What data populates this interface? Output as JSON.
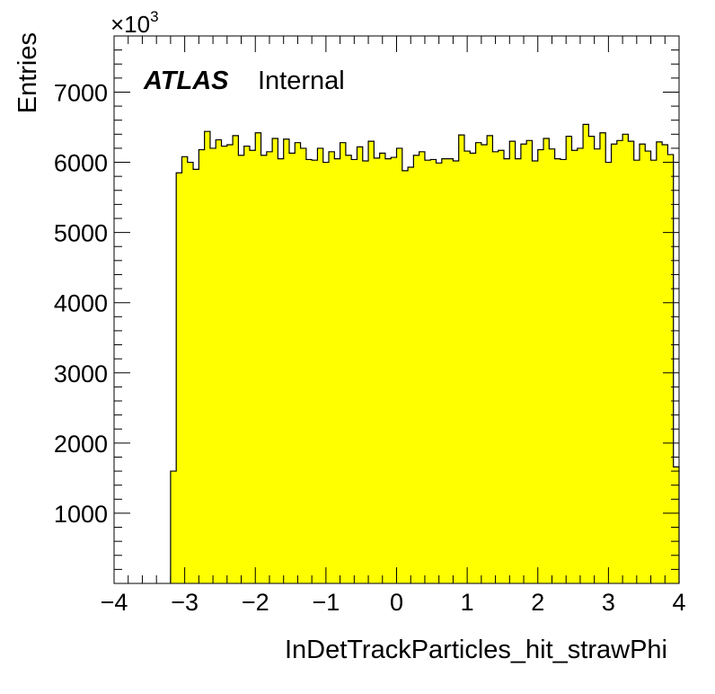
{
  "chart_data": {
    "type": "histogram",
    "title": "",
    "xlabel": "InDetTrackParticles_hit_strawPhi",
    "ylabel": "Entries",
    "y_multiplier_label": "×10",
    "y_multiplier_exponent": "3",
    "xlim": [
      -4,
      4
    ],
    "ylim": [
      0,
      7800
    ],
    "x_ticks": [
      "−4",
      "−3",
      "−2",
      "−1",
      "0",
      "1",
      "2",
      "3",
      "4"
    ],
    "x_tick_values": [
      -4,
      -3,
      -2,
      -1,
      0,
      1,
      2,
      3,
      4
    ],
    "y_ticks": [
      "1000",
      "2000",
      "3000",
      "4000",
      "5000",
      "6000",
      "7000"
    ],
    "y_tick_values": [
      1000,
      2000,
      3000,
      4000,
      5000,
      6000,
      7000
    ],
    "fill_color": "#ffff00",
    "line_color": "#000000",
    "bin_edges_start": -3.2,
    "bin_width": 0.08,
    "values": [
      1600,
      5850,
      6080,
      6000,
      5900,
      6180,
      6440,
      6200,
      6320,
      6230,
      6250,
      6380,
      6100,
      6230,
      6170,
      6420,
      6100,
      6150,
      6340,
      6050,
      6330,
      6130,
      6280,
      6200,
      6040,
      6030,
      6200,
      6000,
      6150,
      6050,
      6280,
      6100,
      6040,
      6220,
      6020,
      6300,
      6060,
      6130,
      6050,
      6070,
      6200,
      5880,
      5930,
      6100,
      6150,
      6030,
      6040,
      5990,
      6050,
      6050,
      6020,
      6390,
      6160,
      6130,
      6280,
      6250,
      6380,
      6150,
      6170,
      6050,
      6300,
      6050,
      6260,
      6310,
      6020,
      6180,
      6340,
      6190,
      6050,
      6040,
      6370,
      6170,
      6200,
      6540,
      6370,
      6190,
      6420,
      6000,
      6260,
      6310,
      6400,
      6300,
      6030,
      6260,
      6160,
      6030,
      6290,
      6250,
      6110,
      1660
    ]
  },
  "labels": {
    "experiment": "ATLAS",
    "status": "Internal"
  }
}
